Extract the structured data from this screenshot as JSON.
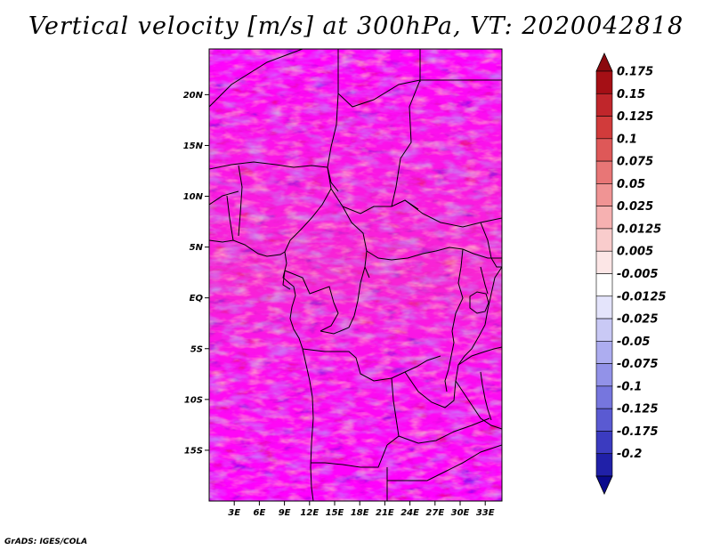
{
  "title": "Vertical velocity [m/s] at 300hPa, VT: 2020042818",
  "credit": "GrADS: IGES/COLA",
  "map": {
    "lat_range": [
      -20,
      24.5
    ],
    "lon_range": [
      0,
      35
    ],
    "lat_ticks": [
      {
        "value": 20,
        "label": "20N"
      },
      {
        "value": 15,
        "label": "15N"
      },
      {
        "value": 10,
        "label": "10N"
      },
      {
        "value": 5,
        "label": "5N"
      },
      {
        "value": 0,
        "label": "EQ"
      },
      {
        "value": -5,
        "label": "5S"
      },
      {
        "value": -10,
        "label": "10S"
      },
      {
        "value": -15,
        "label": "15S"
      }
    ],
    "lon_ticks": [
      {
        "value": 3,
        "label": "3E"
      },
      {
        "value": 6,
        "label": "6E"
      },
      {
        "value": 9,
        "label": "9E"
      },
      {
        "value": 12,
        "label": "12E"
      },
      {
        "value": 15,
        "label": "15E"
      },
      {
        "value": 18,
        "label": "18E"
      },
      {
        "value": 21,
        "label": "21E"
      },
      {
        "value": 24,
        "label": "24E"
      },
      {
        "value": 27,
        "label": "27E"
      },
      {
        "value": 30,
        "label": "30E"
      },
      {
        "value": 33,
        "label": "33E"
      }
    ]
  },
  "colorbar": {
    "levels": [
      {
        "label": "0.175",
        "color": "#a50f15"
      },
      {
        "label": "0.15",
        "color": "#c0262b"
      },
      {
        "label": "0.125",
        "color": "#d13b3b"
      },
      {
        "label": "0.1",
        "color": "#de5858"
      },
      {
        "label": "0.075",
        "color": "#e87676"
      },
      {
        "label": "0.05",
        "color": "#f09494"
      },
      {
        "label": "0.025",
        "color": "#f6b1b1"
      },
      {
        "label": "0.0125",
        "color": "#f9cccc"
      },
      {
        "label": "0.005",
        "color": "#fce6e6"
      },
      {
        "label": "-0.005",
        "color": "#ffffff"
      },
      {
        "label": "-0.0125",
        "color": "#e4e4fb"
      },
      {
        "label": "-0.025",
        "color": "#c9c9f5"
      },
      {
        "label": "-0.05",
        "color": "#adadf0"
      },
      {
        "label": "-0.075",
        "color": "#9292e8"
      },
      {
        "label": "-0.1",
        "color": "#7676de"
      },
      {
        "label": "-0.125",
        "color": "#5a5ad2"
      },
      {
        "label": "-0.175",
        "color": "#3b3bc0"
      },
      {
        "label": "-0.2",
        "color": "#2020a8"
      }
    ],
    "top_color": "#8b0a0f",
    "bottom_color": "#0a0a8c"
  }
}
